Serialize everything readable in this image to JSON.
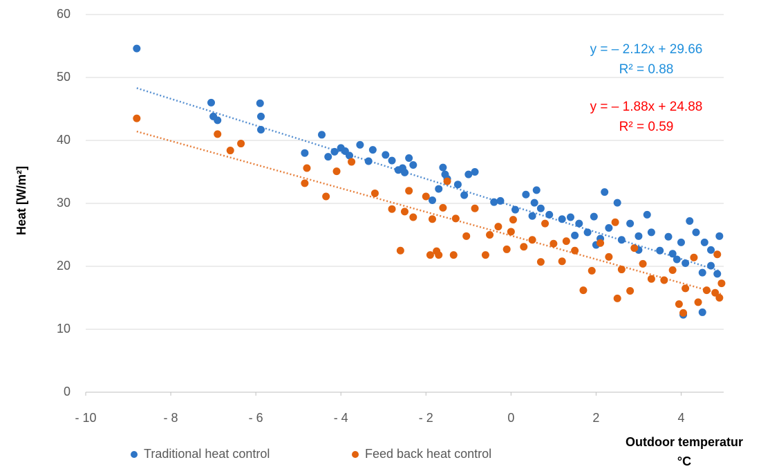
{
  "chart_data": {
    "type": "scatter",
    "y_label": "Heat [W/m²]",
    "x_label": [
      "Outdoor temperatur",
      "°C"
    ],
    "xlim": [
      -10,
      5
    ],
    "xticks": [
      {
        "value": -10,
        "label": "- 10"
      },
      {
        "value": -8,
        "label": "- 8"
      },
      {
        "value": -6,
        "label": "- 6"
      },
      {
        "value": -4,
        "label": "- 4"
      },
      {
        "value": -2,
        "label": "- 2"
      },
      0,
      2,
      4
    ],
    "ylim": [
      0,
      60
    ],
    "yticks": [
      0,
      10,
      20,
      30,
      40,
      50,
      60
    ],
    "grid": true,
    "legend": "bottom",
    "series": [
      {
        "name": "Traditional heat control",
        "color": "#2e75c6",
        "equation_color": "#1f8fdc",
        "trendline": {
          "slope": -2.12,
          "intercept": 29.66,
          "label": "y = – 2.12x + 29.66",
          "r2_label": "R² = 0.88"
        },
        "x": [
          -8.8,
          -7.05,
          -7.0,
          -6.9,
          -5.9,
          -5.88,
          -5.88,
          -4.85,
          -4.45,
          -4.3,
          -4.15,
          -4.0,
          -3.9,
          -3.8,
          -3.55,
          -3.35,
          -3.25,
          -2.95,
          -2.8,
          -2.65,
          -2.55,
          -2.5,
          -2.4,
          -2.3,
          -1.85,
          -1.7,
          -1.6,
          -1.55,
          -1.5,
          -1.25,
          -1.1,
          -1.0,
          -0.85,
          -0.4,
          -0.25,
          0.1,
          0.35,
          0.5,
          0.55,
          0.6,
          0.7,
          0.9,
          1.2,
          1.4,
          1.6,
          1.8,
          1.95,
          2.1,
          2.2,
          2.3,
          2.5,
          2.6,
          2.8,
          3.0,
          3.2,
          3.3,
          3.5,
          3.7,
          3.9,
          4.05,
          4.1,
          4.2,
          4.35,
          4.5,
          4.55,
          4.7,
          4.85,
          4.9,
          4.5,
          3.8,
          1.5,
          2.0,
          3.0,
          4.0,
          4.7
        ],
        "values": [
          54.6,
          46,
          43.8,
          43.2,
          45.9,
          43.8,
          41.7,
          38,
          40.9,
          37.4,
          38.2,
          38.8,
          38.3,
          37.6,
          39.3,
          36.7,
          38.5,
          37.7,
          36.8,
          35.3,
          35.6,
          34.9,
          37.2,
          36.1,
          30.5,
          32.3,
          35.7,
          34.6,
          33.9,
          33,
          31.3,
          34.6,
          35,
          30.2,
          30.4,
          29,
          31.4,
          28,
          30.1,
          32.1,
          29.2,
          28.2,
          27.5,
          27.8,
          26.8,
          25.4,
          27.9,
          24.4,
          31.8,
          26.1,
          30.1,
          24.2,
          26.8,
          24.8,
          28.2,
          25.4,
          22.5,
          24.7,
          21.1,
          12.3,
          20.5,
          27.2,
          25.4,
          12.7,
          23.8,
          22.6,
          18.8,
          24.8,
          19,
          22,
          24.9,
          23.4,
          22.6,
          23.8,
          20.1
        ]
      },
      {
        "name": "Feed back heat control",
        "color": "#e2620e",
        "equation_color": "#ff0000",
        "trendline": {
          "slope": -1.88,
          "intercept": 24.88,
          "label": "y = – 1.88x + 24.88",
          "r2_label": "R² = 0.59"
        },
        "x": [
          -8.8,
          -6.9,
          -6.6,
          -6.35,
          -4.85,
          -4.8,
          -4.35,
          -4.1,
          -3.75,
          -3.2,
          -2.8,
          -2.6,
          -2.5,
          -2.4,
          -2.3,
          -2.0,
          -1.9,
          -1.85,
          -1.75,
          -1.7,
          -1.6,
          -1.5,
          -1.35,
          -1.3,
          -1.05,
          -0.85,
          -0.6,
          -0.5,
          -0.3,
          -0.1,
          0,
          0.05,
          0.3,
          0.5,
          0.7,
          0.8,
          1.0,
          1.2,
          1.3,
          1.5,
          1.7,
          1.9,
          2.1,
          2.3,
          2.5,
          2.6,
          2.8,
          2.9,
          3.1,
          3.3,
          3.6,
          3.8,
          3.95,
          4.05,
          4.1,
          4.3,
          4.4,
          4.6,
          4.8,
          4.9,
          4.95,
          4.85,
          2.45
        ],
        "values": [
          43.5,
          41,
          38.4,
          39.5,
          33.2,
          35.6,
          31.1,
          35.1,
          36.6,
          31.6,
          29.1,
          22.5,
          28.7,
          32,
          27.8,
          31.1,
          21.8,
          27.5,
          22.4,
          21.8,
          29.3,
          33.5,
          21.8,
          27.6,
          24.8,
          29.2,
          21.8,
          25,
          26.3,
          22.7,
          25.5,
          27.4,
          23.1,
          24.2,
          20.7,
          26.8,
          23.6,
          20.8,
          24,
          22.5,
          16.2,
          19.3,
          23.7,
          21.5,
          14.9,
          19.5,
          16.1,
          22.9,
          20.4,
          18,
          17.8,
          19.4,
          14,
          12.6,
          16.5,
          21.4,
          14.3,
          16.2,
          15.8,
          15,
          17.3,
          21.9,
          27
        ]
      }
    ]
  }
}
